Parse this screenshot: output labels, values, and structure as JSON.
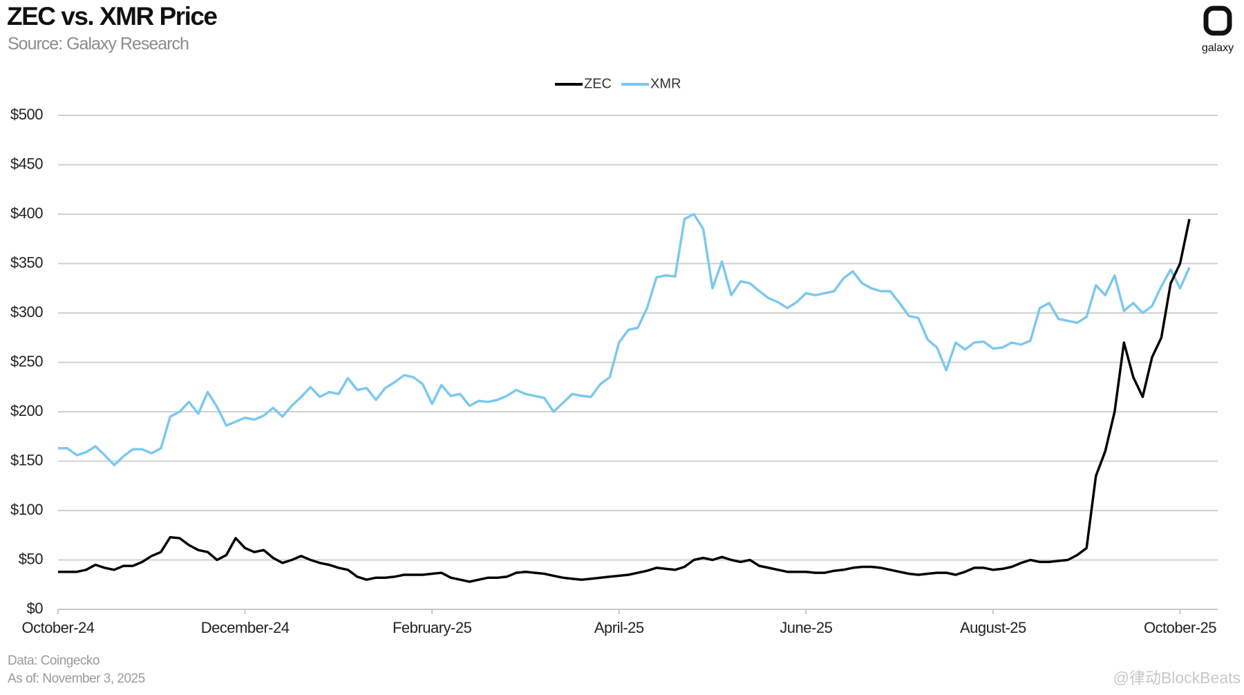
{
  "chart_data": {
    "type": "line",
    "title": "ZEC vs. XMR Price",
    "subtitle": "Source: Galaxy Research",
    "logo": "galaxy",
    "notes": [
      "Data: Coingecko",
      "As of: November 3, 2025"
    ],
    "watermark": "@律动BlockBeats",
    "categories": [
      "October-24",
      null,
      null,
      null,
      null,
      null,
      null,
      null,
      null,
      null,
      null,
      null,
      null,
      null,
      null,
      null,
      null,
      null,
      null,
      null,
      "December-24",
      null,
      null,
      null,
      null,
      null,
      null,
      null,
      null,
      null,
      null,
      null,
      null,
      null,
      null,
      null,
      null,
      null,
      null,
      null,
      "February-25",
      null,
      null,
      null,
      null,
      null,
      null,
      null,
      null,
      null,
      null,
      null,
      null,
      null,
      null,
      null,
      null,
      null,
      null,
      null,
      "April-25",
      null,
      null,
      null,
      null,
      null,
      null,
      null,
      null,
      null,
      null,
      null,
      null,
      null,
      null,
      null,
      null,
      null,
      null,
      null,
      "June-25",
      null,
      null,
      null,
      null,
      null,
      null,
      null,
      null,
      null,
      null,
      null,
      null,
      null,
      null,
      null,
      null,
      null,
      null,
      null,
      "August-25",
      null,
      null,
      null,
      null,
      null,
      null,
      null,
      null,
      null,
      null,
      null,
      null,
      null,
      null,
      null,
      null,
      null,
      null,
      null,
      "October-25",
      null
    ],
    "series": [
      {
        "name": "ZEC",
        "color": "#000000",
        "values": [
          38,
          38,
          38,
          40,
          45,
          42,
          40,
          44,
          44,
          48,
          54,
          58,
          73,
          72,
          65,
          60,
          58,
          50,
          55,
          72,
          62,
          58,
          60,
          52,
          47,
          50,
          54,
          50,
          47,
          45,
          42,
          40,
          33,
          30,
          32,
          32,
          33,
          35,
          35,
          35,
          36,
          37,
          32,
          30,
          28,
          30,
          32,
          32,
          33,
          37,
          38,
          37,
          36,
          34,
          32,
          31,
          30,
          31,
          32,
          33,
          34,
          35,
          37,
          39,
          42,
          41,
          40,
          43,
          50,
          52,
          50,
          53,
          50,
          48,
          50,
          44,
          42,
          40,
          38,
          38,
          38,
          37,
          37,
          39,
          40,
          42,
          43,
          43,
          42,
          40,
          38,
          36,
          35,
          36,
          37,
          37,
          35,
          38,
          42,
          42,
          40,
          41,
          43,
          47,
          50,
          48,
          48,
          49,
          50,
          55,
          62,
          135,
          160,
          200,
          270,
          235,
          215,
          255,
          275,
          330,
          350,
          395
        ]
      },
      {
        "name": "XMR",
        "color": "#7cc8f0",
        "values": [
          163,
          163,
          156,
          159,
          165,
          156,
          146,
          155,
          162,
          162,
          158,
          163,
          195,
          200,
          210,
          198,
          220,
          205,
          186,
          190,
          194,
          192,
          196,
          204,
          195,
          206,
          215,
          225,
          215,
          220,
          218,
          234,
          222,
          224,
          212,
          224,
          230,
          237,
          235,
          228,
          208,
          227,
          216,
          218,
          206,
          211,
          210,
          212,
          216,
          222,
          218,
          216,
          214,
          200,
          209,
          218,
          216,
          215,
          228,
          235,
          270,
          283,
          285,
          305,
          336,
          338,
          337,
          395,
          400,
          385,
          325,
          352,
          318,
          332,
          330,
          322,
          315,
          311,
          305,
          311,
          320,
          318,
          320,
          322,
          335,
          342,
          330,
          325,
          322,
          322,
          310,
          297,
          295,
          273,
          265,
          242,
          270,
          263,
          270,
          271,
          264,
          265,
          270,
          268,
          272,
          305,
          310,
          294,
          292,
          290,
          296,
          328,
          318,
          338,
          302,
          310,
          300,
          307,
          327,
          344,
          325,
          346
        ]
      }
    ],
    "ylim": [
      0,
      500
    ],
    "yticks": [
      {
        "value": 0,
        "label": "$0"
      },
      {
        "value": 50,
        "label": "$50"
      },
      {
        "value": 100,
        "label": "$100"
      },
      {
        "value": 150,
        "label": "$150"
      },
      {
        "value": 200,
        "label": "$200"
      },
      {
        "value": 250,
        "label": "$250"
      },
      {
        "value": 300,
        "label": "$300"
      },
      {
        "value": 350,
        "label": "$350"
      },
      {
        "value": 400,
        "label": "$400"
      },
      {
        "value": 450,
        "label": "$450"
      },
      {
        "value": 500,
        "label": "$500"
      }
    ],
    "grid": true,
    "legend": "top"
  }
}
